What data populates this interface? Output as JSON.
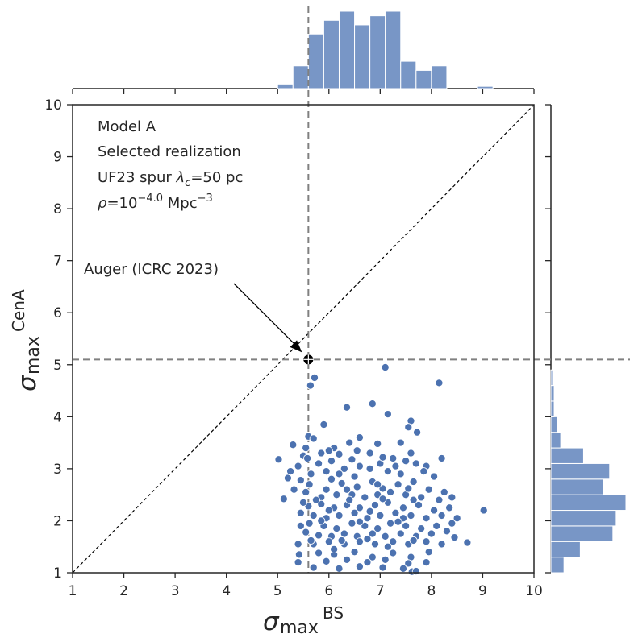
{
  "chart_data": {
    "type": "scatter",
    "title": "",
    "xlabel": {
      "main": "σ",
      "sub": "max",
      "sup": "BS"
    },
    "ylabel": {
      "main": "σ",
      "sub": "max",
      "sup": "CenA"
    },
    "xlim": [
      1,
      10
    ],
    "ylim": [
      1,
      10
    ],
    "xticks": [
      "1",
      "2",
      "3",
      "4",
      "5",
      "6",
      "7",
      "8",
      "9",
      "10"
    ],
    "yticks": [
      "1",
      "2",
      "3",
      "4",
      "5",
      "6",
      "7",
      "8",
      "9",
      "10"
    ],
    "grid": false,
    "legend": "none",
    "colors": {
      "points": "#4c72b0",
      "hist": "#7896c6",
      "reference": "#808080",
      "marker": "#000000"
    },
    "annotation_lines": [
      "Model A",
      "Selected realization",
      "UF23 spur λc=50 pc",
      "ρ=10−4.0 Mpc−3"
    ],
    "reference_point": {
      "label": "Auger (ICRC 2023)",
      "x": 5.6,
      "y": 5.1
    },
    "diagonal": {
      "from": [
        1,
        1
      ],
      "to": [
        10,
        10
      ]
    },
    "points": [
      [
        5.64,
        4.6
      ],
      [
        5.72,
        4.75
      ],
      [
        7.1,
        4.95
      ],
      [
        8.15,
        4.65
      ],
      [
        6.85,
        4.25
      ],
      [
        6.35,
        4.18
      ],
      [
        7.15,
        4.05
      ],
      [
        7.6,
        3.92
      ],
      [
        5.9,
        3.85
      ],
      [
        7.55,
        3.8
      ],
      [
        7.72,
        3.7
      ],
      [
        6.6,
        3.6
      ],
      [
        5.6,
        3.62
      ],
      [
        5.7,
        3.58
      ],
      [
        6.4,
        3.5
      ],
      [
        6.1,
        3.4
      ],
      [
        6.95,
        3.48
      ],
      [
        7.4,
        3.5
      ],
      [
        6.2,
        3.28
      ],
      [
        7.6,
        3.3
      ],
      [
        6.8,
        3.3
      ],
      [
        5.3,
        3.46
      ],
      [
        5.55,
        3.4
      ],
      [
        5.85,
        3.3
      ],
      [
        5.5,
        3.25
      ],
      [
        5.8,
        3.1
      ],
      [
        5.02,
        3.18
      ],
      [
        5.4,
        3.05
      ],
      [
        6.05,
        3.15
      ],
      [
        6.45,
        3.18
      ],
      [
        6.3,
        3.0
      ],
      [
        6.6,
        3.05
      ],
      [
        7.0,
        3.1
      ],
      [
        7.25,
        3.2
      ],
      [
        7.5,
        3.15
      ],
      [
        7.9,
        3.05
      ],
      [
        8.2,
        3.2
      ],
      [
        8.05,
        2.85
      ],
      [
        7.85,
        2.95
      ],
      [
        7.4,
        2.9
      ],
      [
        7.15,
        2.95
      ],
      [
        6.8,
        3.0
      ],
      [
        6.5,
        2.85
      ],
      [
        6.2,
        2.9
      ],
      [
        5.95,
        2.95
      ],
      [
        5.65,
        2.9
      ],
      [
        5.45,
        2.78
      ],
      [
        5.2,
        2.82
      ],
      [
        5.62,
        2.7
      ],
      [
        5.95,
        2.6
      ],
      [
        6.25,
        2.72
      ],
      [
        6.55,
        2.65
      ],
      [
        6.85,
        2.75
      ],
      [
        7.05,
        2.62
      ],
      [
        7.35,
        2.7
      ],
      [
        7.65,
        2.75
      ],
      [
        7.95,
        2.6
      ],
      [
        8.25,
        2.55
      ],
      [
        8.4,
        2.45
      ],
      [
        8.15,
        2.4
      ],
      [
        7.8,
        2.45
      ],
      [
        7.5,
        2.5
      ],
      [
        7.2,
        2.55
      ],
      [
        6.95,
        2.5
      ],
      [
        6.7,
        2.45
      ],
      [
        6.45,
        2.5
      ],
      [
        6.15,
        2.5
      ],
      [
        5.85,
        2.45
      ],
      [
        5.55,
        2.55
      ],
      [
        5.32,
        2.6
      ],
      [
        5.12,
        2.42
      ],
      [
        5.6,
        2.28
      ],
      [
        5.85,
        2.32
      ],
      [
        6.1,
        2.25
      ],
      [
        6.35,
        2.3
      ],
      [
        6.6,
        2.25
      ],
      [
        6.9,
        2.3
      ],
      [
        7.15,
        2.35
      ],
      [
        7.45,
        2.25
      ],
      [
        7.75,
        2.3
      ],
      [
        8.05,
        2.2
      ],
      [
        8.35,
        2.25
      ],
      [
        8.2,
        2.1
      ],
      [
        7.9,
        2.05
      ],
      [
        7.6,
        2.1
      ],
      [
        7.3,
        2.15
      ],
      [
        7.0,
        2.1
      ],
      [
        6.75,
        2.05
      ],
      [
        6.5,
        2.15
      ],
      [
        6.2,
        2.1
      ],
      [
        5.95,
        2.05
      ],
      [
        5.7,
        2.1
      ],
      [
        5.45,
        2.15
      ],
      [
        5.62,
        1.95
      ],
      [
        5.9,
        1.9
      ],
      [
        6.15,
        1.85
      ],
      [
        6.45,
        1.95
      ],
      [
        6.7,
        1.9
      ],
      [
        6.95,
        1.85
      ],
      [
        7.2,
        1.95
      ],
      [
        7.5,
        1.9
      ],
      [
        7.8,
        1.85
      ],
      [
        8.1,
        1.9
      ],
      [
        8.4,
        1.95
      ],
      [
        8.3,
        1.8
      ],
      [
        8.0,
        1.75
      ],
      [
        7.7,
        1.7
      ],
      [
        7.4,
        1.75
      ],
      [
        7.1,
        1.7
      ],
      [
        6.85,
        1.75
      ],
      [
        6.55,
        1.7
      ],
      [
        6.3,
        1.75
      ],
      [
        6.05,
        1.7
      ],
      [
        5.8,
        1.72
      ],
      [
        5.55,
        1.78
      ],
      [
        5.45,
        1.9
      ],
      [
        5.4,
        1.55
      ],
      [
        5.7,
        1.55
      ],
      [
        6.0,
        1.6
      ],
      [
        6.3,
        1.55
      ],
      [
        6.6,
        1.6
      ],
      [
        6.9,
        1.55
      ],
      [
        7.25,
        1.6
      ],
      [
        7.55,
        1.55
      ],
      [
        7.9,
        1.6
      ],
      [
        8.2,
        1.55
      ],
      [
        8.7,
        1.58
      ],
      [
        9.02,
        2.2
      ],
      [
        5.42,
        1.35
      ],
      [
        5.8,
        1.38
      ],
      [
        6.1,
        1.35
      ],
      [
        6.5,
        1.4
      ],
      [
        6.85,
        1.3
      ],
      [
        7.25,
        1.38
      ],
      [
        7.6,
        1.3
      ],
      [
        7.95,
        1.4
      ],
      [
        5.4,
        1.2
      ],
      [
        5.95,
        1.22
      ],
      [
        6.35,
        1.25
      ],
      [
        6.75,
        1.2
      ],
      [
        7.1,
        1.25
      ],
      [
        7.55,
        1.18
      ],
      [
        7.9,
        1.2
      ],
      [
        5.7,
        1.1
      ],
      [
        6.2,
        1.08
      ],
      [
        6.6,
        1.12
      ],
      [
        7.05,
        1.1
      ],
      [
        7.45,
        1.08
      ],
      [
        7.62,
        1.02
      ],
      [
        7.7,
        1.03
      ],
      [
        5.58,
        3.2
      ],
      [
        6.0,
        3.35
      ],
      [
        6.55,
        3.35
      ],
      [
        7.05,
        3.22
      ],
      [
        7.3,
        3.05
      ],
      [
        7.7,
        3.1
      ],
      [
        5.25,
        2.95
      ],
      [
        6.05,
        2.8
      ],
      [
        6.35,
        2.6
      ],
      [
        6.95,
        2.7
      ],
      [
        7.55,
        2.62
      ],
      [
        5.75,
        2.4
      ],
      [
        6.4,
        2.4
      ],
      [
        7.05,
        2.42
      ],
      [
        7.65,
        2.4
      ],
      [
        5.5,
        2.35
      ],
      [
        6.0,
        2.2
      ],
      [
        6.8,
        2.18
      ],
      [
        7.45,
        2.05
      ],
      [
        8.5,
        2.05
      ],
      [
        5.85,
        2.0
      ],
      [
        6.6,
        1.98
      ],
      [
        7.35,
        1.98
      ],
      [
        6.25,
        1.62
      ],
      [
        6.75,
        1.65
      ],
      [
        7.65,
        1.62
      ],
      [
        8.45,
        1.68
      ],
      [
        6.1,
        1.45
      ],
      [
        7.15,
        1.5
      ],
      [
        5.65,
        1.62
      ]
    ],
    "top_histogram": {
      "bin_edges": [
        5.0,
        5.3,
        5.6,
        5.9,
        6.2,
        6.5,
        6.8,
        7.1,
        7.4,
        7.7,
        8.0,
        8.3,
        8.6,
        8.9,
        9.2
      ],
      "counts": [
        1,
        5,
        12,
        15,
        17,
        14,
        16,
        17,
        6,
        4,
        5,
        0,
        0,
        0.5
      ]
    },
    "right_histogram": {
      "bin_edges": [
        1.0,
        1.3,
        1.6,
        1.9,
        2.2,
        2.5,
        2.8,
        3.1,
        3.4,
        3.7,
        4.0,
        4.3,
        4.6,
        4.9,
        5.2
      ],
      "counts": [
        4,
        9,
        19,
        20,
        23,
        16,
        18,
        10,
        3,
        2,
        1,
        1,
        0.5,
        0
      ]
    }
  }
}
